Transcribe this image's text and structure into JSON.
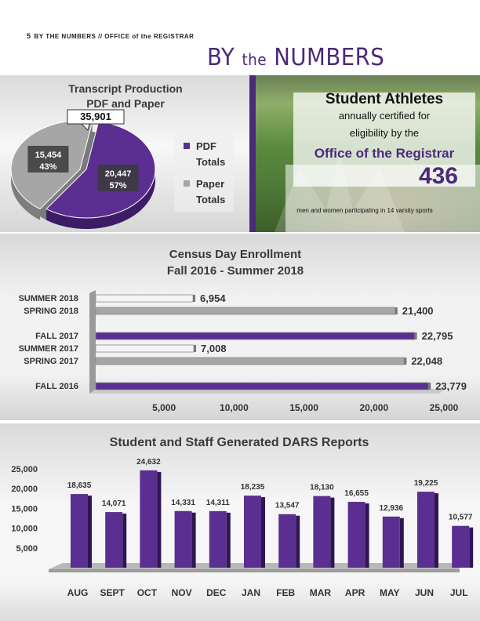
{
  "header": {
    "page_number": "5",
    "text": "BY THE NUMBERS // OFFICE of the REGISTRAR"
  },
  "page_title": {
    "part1": "BY",
    "part2": "the",
    "part3": "NUMBERS"
  },
  "colors": {
    "purple": "#5b2e91",
    "gray": "#a6a6a6",
    "white_bar": "#f4f4f4"
  },
  "athletes": {
    "heading": "Student Athletes",
    "line1": "annually certified for",
    "line2": "eligibility by the",
    "office": "Office of the Registrar",
    "count": "436",
    "footnote": "men and women participating in 14 varsity sports"
  },
  "chart_data": [
    {
      "type": "pie",
      "title": "Transcript Production",
      "subtitle": "PDF and Paper",
      "total": 35901,
      "total_label": "35,901",
      "slices": [
        {
          "name": "PDF Totals",
          "legend_line1": "PDF",
          "legend_line2": "Totals",
          "value": 20447,
          "value_label": "20,447",
          "percent_label": "57%",
          "color": "#5b2e91"
        },
        {
          "name": "Paper Totals",
          "legend_line1": "Paper",
          "legend_line2": "Totals",
          "value": 15454,
          "value_label": "15,454",
          "percent_label": "43%",
          "color": "#a6a6a6"
        }
      ]
    },
    {
      "type": "bar",
      "orientation": "horizontal",
      "title": "Census Day Enrollment",
      "subtitle": "Fall 2016 - Summer 2018",
      "categories": [
        "SUMMER 2018",
        "SPRING 2018",
        "FALL 2017",
        "SUMMER 2017",
        "SPRING 2017",
        "FALL 2016"
      ],
      "values": [
        6954,
        21400,
        22795,
        7008,
        22048,
        23779
      ],
      "value_labels": [
        "6,954",
        "21,400",
        "22,795",
        "7,008",
        "22,048",
        "23,779"
      ],
      "bar_colors": [
        "#f4f4f4",
        "#a6a6a6",
        "#5b2e91",
        "#f4f4f4",
        "#a6a6a6",
        "#5b2e91"
      ],
      "xlim": [
        0,
        25000
      ],
      "xticks": [
        5000,
        10000,
        15000,
        20000,
        25000
      ],
      "xtick_labels": [
        "5,000",
        "10,000",
        "15,000",
        "20,000",
        "25,000"
      ]
    },
    {
      "type": "bar",
      "title": "Student and Staff Generated DARS Reports",
      "categories": [
        "AUG",
        "SEPT",
        "OCT",
        "NOV",
        "DEC",
        "JAN",
        "FEB",
        "MAR",
        "APR",
        "MAY",
        "JUN",
        "JUL"
      ],
      "values": [
        18635,
        14071,
        24632,
        14331,
        14311,
        18235,
        13547,
        18130,
        16655,
        12936,
        19225,
        10577
      ],
      "value_labels": [
        "18,635",
        "14,071",
        "24,632",
        "14,331",
        "14,311",
        "18,235",
        "13,547",
        "18,130",
        "16,655",
        "12,936",
        "19,225",
        "10,577"
      ],
      "ylim": [
        0,
        25000
      ],
      "yticks": [
        5000,
        10000,
        15000,
        20000,
        25000
      ],
      "ytick_labels": [
        "5,000",
        "10,000",
        "15,000",
        "20,000",
        "25,000"
      ],
      "color": "#5b2e91"
    }
  ]
}
